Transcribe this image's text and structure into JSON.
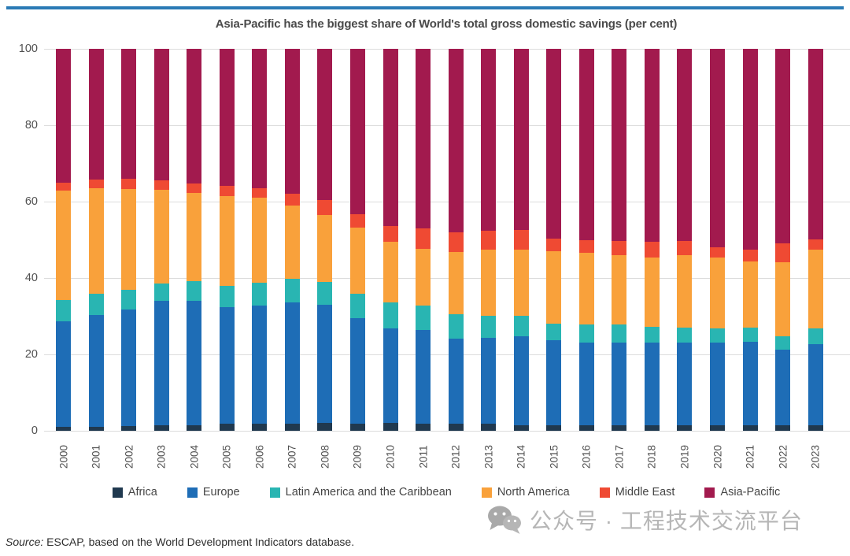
{
  "decor": {
    "top_rule_color": "#2a7ab5"
  },
  "y_axis_ticks": [
    0,
    20,
    40,
    60,
    80,
    100
  ],
  "legend_swatch_shape": "square",
  "watermark": {
    "icon": "wechat-icon",
    "text": "公众号 · 工程技术交流平台"
  },
  "source": {
    "label": "Source:",
    "text": "ESCAP, based on the World Development Indicators database."
  },
  "chart_data": {
    "type": "bar",
    "stacked": true,
    "percent_total": 100,
    "title": "Asia-Pacific has the biggest share of World's total gross domestic savings (per cent)",
    "xlabel": "",
    "ylabel": "",
    "ylim": [
      0,
      100
    ],
    "grid": true,
    "legend_position": "bottom",
    "categories": [
      "2000",
      "2001",
      "2002",
      "2003",
      "2004",
      "2005",
      "2006",
      "2007",
      "2008",
      "2009",
      "2010",
      "2011",
      "2012",
      "2013",
      "2014",
      "2015",
      "2016",
      "2017",
      "2018",
      "2019",
      "2020",
      "2021",
      "2022",
      "2023"
    ],
    "series": [
      {
        "name": "Africa",
        "color": "#20394f",
        "values": [
          1.0,
          1.0,
          1.2,
          1.4,
          1.5,
          1.8,
          1.8,
          1.8,
          2.0,
          1.8,
          2.0,
          1.8,
          1.8,
          1.8,
          1.5,
          1.5,
          1.5,
          1.5,
          1.5,
          1.5,
          1.5,
          1.5,
          1.5,
          1.5
        ]
      },
      {
        "name": "Europe",
        "color": "#1e6db6",
        "values": [
          27.7,
          29.3,
          30.6,
          32.6,
          32.5,
          30.5,
          31.0,
          31.8,
          31.0,
          27.7,
          24.8,
          24.5,
          22.4,
          22.5,
          23.2,
          22.2,
          21.6,
          21.7,
          21.6,
          21.7,
          21.7,
          21.9,
          19.7,
          21.2
        ]
      },
      {
        "name": "Latin America and the Caribbean",
        "color": "#29b5b2",
        "values": [
          5.6,
          5.5,
          5.2,
          4.6,
          5.2,
          5.7,
          5.9,
          6.1,
          6.0,
          6.3,
          6.9,
          6.5,
          6.3,
          5.8,
          5.5,
          4.3,
          4.7,
          4.7,
          4.1,
          3.8,
          3.7,
          3.6,
          3.6,
          4.2
        ]
      },
      {
        "name": "North America",
        "color": "#f9a13b",
        "values": [
          28.5,
          27.8,
          26.4,
          24.5,
          23.1,
          23.5,
          22.3,
          19.3,
          17.5,
          17.5,
          15.7,
          14.8,
          16.4,
          17.4,
          17.3,
          19.0,
          18.8,
          18.1,
          18.2,
          19.0,
          18.5,
          17.4,
          19.4,
          20.6
        ]
      },
      {
        "name": "Middle East",
        "color": "#ef4a33",
        "values": [
          2.2,
          2.2,
          2.6,
          2.5,
          2.4,
          2.6,
          2.6,
          3.0,
          4.0,
          3.5,
          4.3,
          5.5,
          5.0,
          4.8,
          5.0,
          3.4,
          3.4,
          3.7,
          4.0,
          3.7,
          2.6,
          3.1,
          4.8,
          2.7
        ]
      },
      {
        "name": "Asia-Pacific",
        "color": "#a21a4e",
        "values": [
          35.0,
          34.2,
          34.0,
          34.4,
          35.3,
          35.9,
          36.4,
          38.0,
          39.5,
          43.2,
          46.3,
          46.9,
          48.1,
          47.7,
          47.5,
          49.6,
          50.0,
          50.3,
          50.6,
          50.3,
          52.0,
          52.5,
          51.0,
          49.8
        ]
      }
    ]
  }
}
